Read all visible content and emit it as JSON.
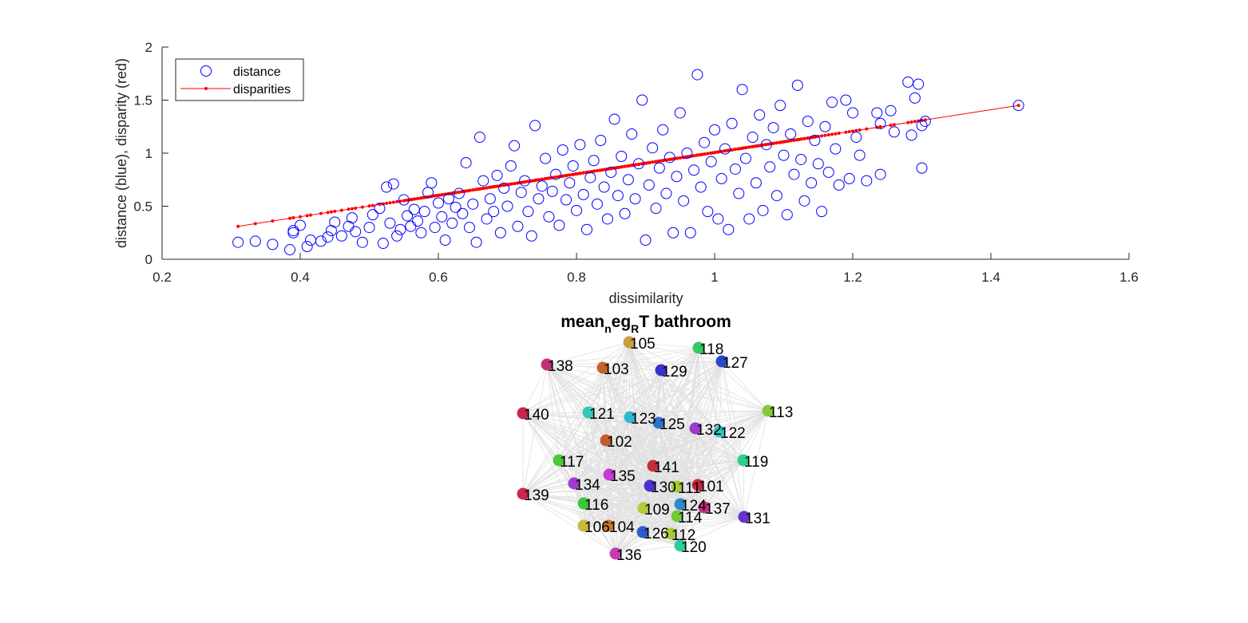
{
  "chart_data": [
    {
      "type": "scatter",
      "xlabel": "dissimilarity",
      "ylabel": "distance (blue), disparity (red)",
      "xlim": [
        0.2,
        1.6
      ],
      "ylim": [
        0,
        2
      ],
      "xticks": [
        "0.2",
        "0.4",
        "0.6",
        "0.8",
        "1",
        "1.2",
        "1.4",
        "1.6"
      ],
      "yticks": [
        "0",
        "0.5",
        "1",
        "1.5",
        "2"
      ],
      "grid": false,
      "legend_placement": "top-left",
      "series": [
        {
          "name": "distance",
          "style": "open circles",
          "color": "#0000ff",
          "points": [
            [
              0.31,
              0.16
            ],
            [
              0.335,
              0.17
            ],
            [
              0.36,
              0.14
            ],
            [
              0.385,
              0.09
            ],
            [
              0.39,
              0.25
            ],
            [
              0.39,
              0.27
            ],
            [
              0.4,
              0.32
            ],
            [
              0.41,
              0.12
            ],
            [
              0.415,
              0.18
            ],
            [
              0.43,
              0.17
            ],
            [
              0.44,
              0.21
            ],
            [
              0.445,
              0.27
            ],
            [
              0.45,
              0.35
            ],
            [
              0.46,
              0.22
            ],
            [
              0.47,
              0.31
            ],
            [
              0.475,
              0.39
            ],
            [
              0.48,
              0.26
            ],
            [
              0.49,
              0.16
            ],
            [
              0.5,
              0.3
            ],
            [
              0.505,
              0.42
            ],
            [
              0.515,
              0.48
            ],
            [
              0.52,
              0.15
            ],
            [
              0.525,
              0.68
            ],
            [
              0.53,
              0.34
            ],
            [
              0.535,
              0.71
            ],
            [
              0.54,
              0.22
            ],
            [
              0.545,
              0.28
            ],
            [
              0.55,
              0.56
            ],
            [
              0.555,
              0.41
            ],
            [
              0.56,
              0.31
            ],
            [
              0.565,
              0.47
            ],
            [
              0.57,
              0.36
            ],
            [
              0.575,
              0.25
            ],
            [
              0.58,
              0.45
            ],
            [
              0.585,
              0.63
            ],
            [
              0.59,
              0.72
            ],
            [
              0.595,
              0.3
            ],
            [
              0.6,
              0.53
            ],
            [
              0.605,
              0.4
            ],
            [
              0.61,
              0.18
            ],
            [
              0.615,
              0.57
            ],
            [
              0.62,
              0.34
            ],
            [
              0.625,
              0.49
            ],
            [
              0.63,
              0.62
            ],
            [
              0.635,
              0.43
            ],
            [
              0.64,
              0.91
            ],
            [
              0.645,
              0.3
            ],
            [
              0.65,
              0.52
            ],
            [
              0.655,
              0.16
            ],
            [
              0.66,
              1.15
            ],
            [
              0.665,
              0.74
            ],
            [
              0.67,
              0.38
            ],
            [
              0.675,
              0.57
            ],
            [
              0.68,
              0.45
            ],
            [
              0.685,
              0.79
            ],
            [
              0.69,
              0.25
            ],
            [
              0.695,
              0.67
            ],
            [
              0.7,
              0.5
            ],
            [
              0.705,
              0.88
            ],
            [
              0.71,
              1.07
            ],
            [
              0.715,
              0.31
            ],
            [
              0.72,
              0.63
            ],
            [
              0.725,
              0.74
            ],
            [
              0.73,
              0.45
            ],
            [
              0.735,
              0.22
            ],
            [
              0.74,
              1.26
            ],
            [
              0.745,
              0.57
            ],
            [
              0.75,
              0.69
            ],
            [
              0.755,
              0.95
            ],
            [
              0.76,
              0.4
            ],
            [
              0.765,
              0.64
            ],
            [
              0.77,
              0.8
            ],
            [
              0.775,
              0.32
            ],
            [
              0.78,
              1.03
            ],
            [
              0.785,
              0.56
            ],
            [
              0.79,
              0.72
            ],
            [
              0.795,
              0.88
            ],
            [
              0.8,
              0.46
            ],
            [
              0.805,
              1.08
            ],
            [
              0.81,
              0.61
            ],
            [
              0.815,
              0.28
            ],
            [
              0.82,
              0.77
            ],
            [
              0.825,
              0.93
            ],
            [
              0.83,
              0.52
            ],
            [
              0.835,
              1.12
            ],
            [
              0.84,
              0.68
            ],
            [
              0.845,
              0.38
            ],
            [
              0.85,
              0.82
            ],
            [
              0.855,
              1.32
            ],
            [
              0.86,
              0.6
            ],
            [
              0.865,
              0.97
            ],
            [
              0.87,
              0.43
            ],
            [
              0.875,
              0.75
            ],
            [
              0.88,
              1.18
            ],
            [
              0.885,
              0.57
            ],
            [
              0.89,
              0.9
            ],
            [
              0.895,
              1.5
            ],
            [
              0.9,
              0.18
            ],
            [
              0.905,
              0.7
            ],
            [
              0.91,
              1.05
            ],
            [
              0.915,
              0.48
            ],
            [
              0.92,
              0.86
            ],
            [
              0.925,
              1.22
            ],
            [
              0.93,
              0.62
            ],
            [
              0.935,
              0.96
            ],
            [
              0.94,
              0.25
            ],
            [
              0.945,
              0.78
            ],
            [
              0.95,
              1.38
            ],
            [
              0.955,
              0.55
            ],
            [
              0.96,
              1.0
            ],
            [
              0.965,
              0.25
            ],
            [
              0.97,
              0.84
            ],
            [
              0.975,
              1.74
            ],
            [
              0.98,
              0.68
            ],
            [
              0.985,
              1.1
            ],
            [
              0.99,
              0.45
            ],
            [
              0.995,
              0.92
            ],
            [
              1.0,
              1.22
            ],
            [
              1.005,
              0.38
            ],
            [
              1.01,
              0.76
            ],
            [
              1.015,
              1.04
            ],
            [
              1.02,
              0.28
            ],
            [
              1.025,
              1.28
            ],
            [
              1.03,
              0.85
            ],
            [
              1.035,
              0.62
            ],
            [
              1.04,
              1.6
            ],
            [
              1.045,
              0.95
            ],
            [
              1.05,
              0.38
            ],
            [
              1.055,
              1.15
            ],
            [
              1.06,
              0.72
            ],
            [
              1.065,
              1.36
            ],
            [
              1.07,
              0.46
            ],
            [
              1.075,
              1.08
            ],
            [
              1.08,
              0.87
            ],
            [
              1.085,
              1.24
            ],
            [
              1.09,
              0.6
            ],
            [
              1.095,
              1.45
            ],
            [
              1.1,
              0.98
            ],
            [
              1.105,
              0.42
            ],
            [
              1.11,
              1.18
            ],
            [
              1.115,
              0.8
            ],
            [
              1.12,
              1.64
            ],
            [
              1.125,
              0.94
            ],
            [
              1.13,
              0.55
            ],
            [
              1.135,
              1.3
            ],
            [
              1.14,
              0.72
            ],
            [
              1.145,
              1.12
            ],
            [
              1.15,
              0.9
            ],
            [
              1.155,
              0.45
            ],
            [
              1.16,
              1.25
            ],
            [
              1.165,
              0.82
            ],
            [
              1.17,
              1.48
            ],
            [
              1.175,
              1.04
            ],
            [
              1.18,
              0.7
            ],
            [
              1.19,
              1.5
            ],
            [
              1.195,
              0.76
            ],
            [
              1.2,
              1.38
            ],
            [
              1.205,
              1.15
            ],
            [
              1.21,
              0.98
            ],
            [
              1.22,
              0.74
            ],
            [
              1.235,
              1.38
            ],
            [
              1.24,
              1.28
            ],
            [
              1.24,
              0.8
            ],
            [
              1.255,
              1.4
            ],
            [
              1.26,
              1.2
            ],
            [
              1.28,
              1.67
            ],
            [
              1.285,
              1.17
            ],
            [
              1.29,
              1.52
            ],
            [
              1.295,
              1.65
            ],
            [
              1.3,
              1.26
            ],
            [
              1.3,
              0.86
            ],
            [
              1.305,
              1.3
            ],
            [
              1.44,
              1.45
            ]
          ]
        },
        {
          "name": "disparities",
          "style": "line with dot markers",
          "color": "#ff0000",
          "points": [
            [
              0.31,
              0.31
            ],
            [
              1.44,
              1.45
            ]
          ]
        }
      ]
    },
    {
      "type": "network",
      "title": "mean_neg_RT bathroom",
      "title_parts": {
        "a": "mean",
        "b": "n",
        "c": "eg",
        "d": "R",
        "e": "T bathroom"
      },
      "edge_color": "#e0e0e0",
      "nodes": [
        {
          "label": "105",
          "color": "#c9a13a"
        },
        {
          "label": "118",
          "color": "#34c766"
        },
        {
          "label": "127",
          "color": "#2a46cc"
        },
        {
          "label": "138",
          "color": "#c42f7a"
        },
        {
          "label": "103",
          "color": "#c4652d"
        },
        {
          "label": "129",
          "color": "#3a32c8"
        },
        {
          "label": "113",
          "color": "#86c93a"
        },
        {
          "label": "140",
          "color": "#c7284a"
        },
        {
          "label": "121",
          "color": "#34c7b6"
        },
        {
          "label": "123",
          "color": "#2fb7cc"
        },
        {
          "label": "125",
          "color": "#2d72cc"
        },
        {
          "label": "132",
          "color": "#9c3ad0"
        },
        {
          "label": "122",
          "color": "#34c7c0"
        },
        {
          "label": "102",
          "color": "#c45a2d"
        },
        {
          "label": "117",
          "color": "#4ac93a"
        },
        {
          "label": "119",
          "color": "#2fcc8c"
        },
        {
          "label": "141",
          "color": "#c72d3a"
        },
        {
          "label": "135",
          "color": "#c43ad0"
        },
        {
          "label": "134",
          "color": "#a23ad0"
        },
        {
          "label": "130",
          "color": "#4a32d0"
        },
        {
          "label": "111",
          "color": "#a4c93a"
        },
        {
          "label": "101",
          "color": "#c7283a"
        },
        {
          "label": "139",
          "color": "#c7284c"
        },
        {
          "label": "116",
          "color": "#3ac93a"
        },
        {
          "label": "109",
          "color": "#b8c93a"
        },
        {
          "label": "124",
          "color": "#2f8acc"
        },
        {
          "label": "137",
          "color": "#c72d80"
        },
        {
          "label": "114",
          "color": "#72c93a"
        },
        {
          "label": "131",
          "color": "#6a32cc"
        },
        {
          "label": "106",
          "color": "#c9b83a"
        },
        {
          "label": "104",
          "color": "#c97a2d"
        },
        {
          "label": "126",
          "color": "#2d5ccc"
        },
        {
          "label": "112",
          "color": "#a8c93a"
        },
        {
          "label": "120",
          "color": "#2fcc9c"
        },
        {
          "label": "136",
          "color": "#c93ab0"
        }
      ]
    }
  ]
}
